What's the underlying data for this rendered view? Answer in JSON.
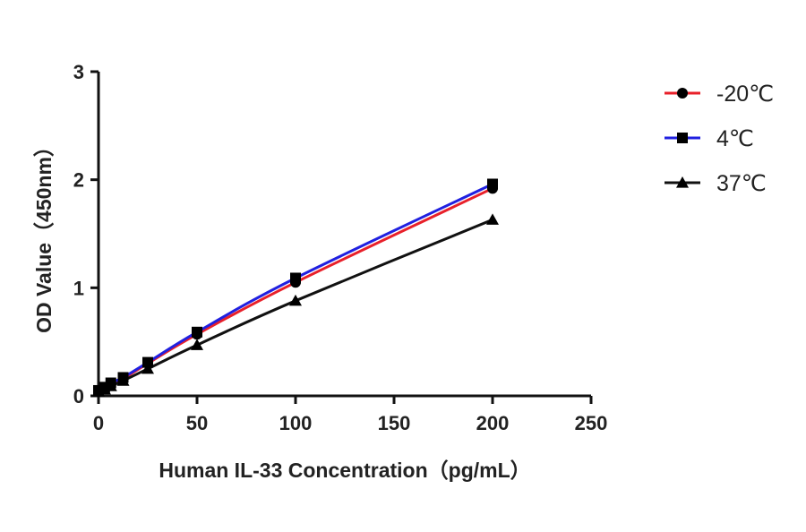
{
  "chart_data": {
    "type": "line",
    "xlabel": "Human IL-33 Concentration（pg/mL）",
    "ylabel": "OD Value（450nm）",
    "xlim": [
      0,
      250
    ],
    "ylim": [
      0,
      3
    ],
    "xticks": [
      "0",
      "50",
      "100",
      "150",
      "200",
      "250"
    ],
    "yticks": [
      "0",
      "1",
      "2",
      "3"
    ],
    "grid": false,
    "legend_position": "right",
    "x": [
      0,
      3.125,
      6.25,
      12.5,
      25,
      50,
      100,
      200
    ],
    "series": [
      {
        "name": "-20℃",
        "marker": "circle",
        "color": "#e8202a",
        "values": [
          0.04,
          0.07,
          0.11,
          0.16,
          0.3,
          0.57,
          1.05,
          1.92
        ]
      },
      {
        "name": "4℃",
        "marker": "square",
        "color": "#2020e0",
        "values": [
          0.05,
          0.08,
          0.12,
          0.17,
          0.31,
          0.59,
          1.09,
          1.96
        ]
      },
      {
        "name": "37℃",
        "marker": "triangle",
        "color": "#111111",
        "values": [
          0.04,
          0.06,
          0.09,
          0.14,
          0.25,
          0.47,
          0.88,
          1.63
        ]
      }
    ]
  }
}
